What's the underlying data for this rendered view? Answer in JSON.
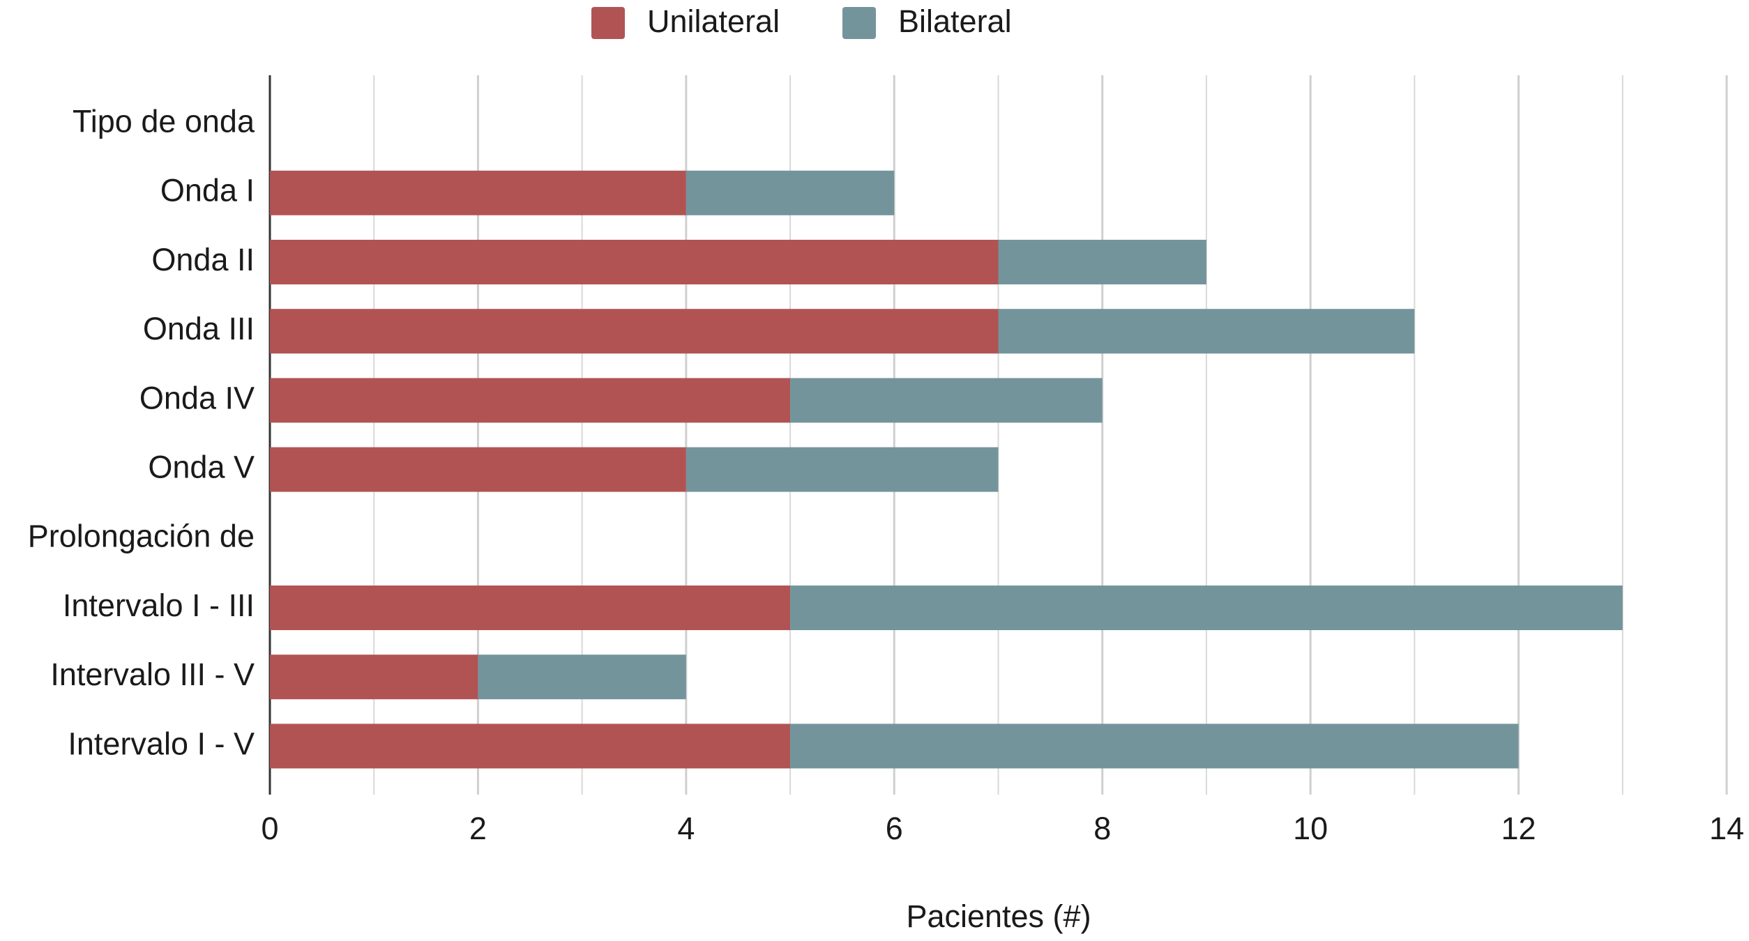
{
  "chart_data": {
    "type": "stacked-barh",
    "categories": [
      "Tipo de onda",
      "Onda I",
      "Onda II",
      "Onda III",
      "Onda IV",
      "Onda V",
      "Prolongación de",
      "Intervalo I - III",
      "Intervalo III - V",
      "Intervalo I - V"
    ],
    "series": [
      {
        "name": "Unilateral",
        "color": "#b25353",
        "values": [
          null,
          4,
          7,
          7,
          5,
          4,
          null,
          5,
          2,
          5
        ]
      },
      {
        "name": "Bilateral",
        "color": "#74949c",
        "values": [
          null,
          2,
          2,
          4,
          3,
          3,
          null,
          8,
          2,
          7
        ]
      }
    ],
    "xlabel": "Pacientes (#)",
    "xlim": [
      0,
      14
    ],
    "xticks": [
      0,
      2,
      4,
      6,
      8,
      10,
      12,
      14
    ],
    "minor_xticks": [
      1,
      3,
      5,
      7,
      9,
      11,
      13
    ],
    "grid": true,
    "legend": "top"
  }
}
